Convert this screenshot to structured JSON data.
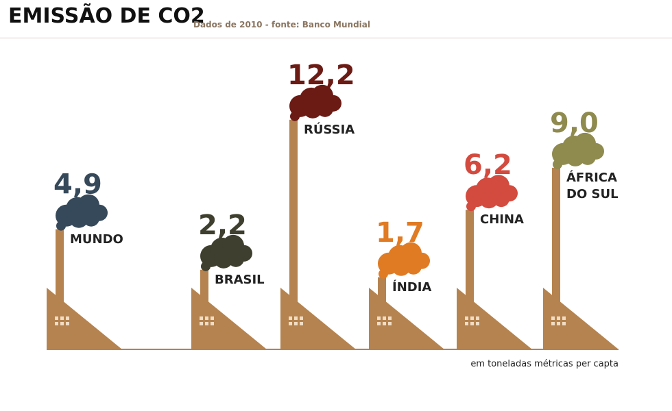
{
  "chart_data": {
    "type": "bar",
    "title": "EMISSÃO DE CO2",
    "subtitle": "Dados de 2010 - fonte: Banco Mundial",
    "note": "em toneladas métricas per capta",
    "categories": [
      "MUNDO",
      "BRASIL",
      "RÚSSIA",
      "ÍNDIA",
      "CHINA",
      "ÁFRICA DO SUL"
    ],
    "values": [
      4.9,
      2.2,
      12.2,
      1.7,
      6.2,
      9.0
    ],
    "value_labels": [
      "4,9",
      "2,2",
      "12,2",
      "1,7",
      "6,2",
      "9,0"
    ],
    "colors": [
      "#36495a",
      "#3f3f2f",
      "#6b1a14",
      "#e07b24",
      "#d34a3e",
      "#8f8a4e"
    ]
  }
}
